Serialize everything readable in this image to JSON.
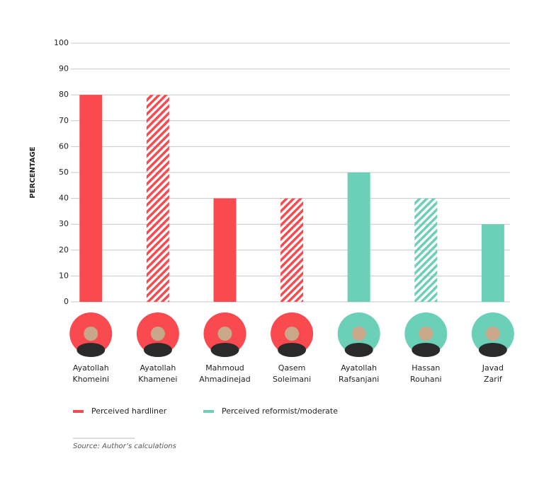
{
  "chart_data": {
    "type": "bar",
    "y_label": "PERCENTAGE",
    "categories": [
      [
        "Ayatollah",
        "Khomeini"
      ],
      [
        "Ayatollah",
        "Khamenei"
      ],
      [
        "Mahmoud",
        "Ahmadinejad"
      ],
      [
        "Qasem",
        "Soleimani"
      ],
      [
        "Ayatollah",
        "Rafsanjani"
      ],
      [
        "Hassan",
        "Rouhani"
      ],
      [
        "Javad",
        "Zarif"
      ]
    ],
    "series": [
      {
        "name": "Perceived hardliner",
        "color": "#f94a4f",
        "values": [
          80,
          80,
          40,
          40,
          null,
          null,
          null
        ]
      },
      {
        "name": "Perceived reformist/moderate",
        "color": "#6ccfb8",
        "values": [
          null,
          null,
          null,
          null,
          50,
          40,
          30
        ]
      }
    ],
    "hatched": [
      false,
      true,
      false,
      true,
      false,
      true,
      false
    ],
    "ylim": [
      0,
      100
    ],
    "yticks": [
      0,
      10,
      20,
      30,
      40,
      50,
      60,
      70,
      80,
      90,
      100
    ],
    "grid": true,
    "source": "Source: Author’s calculations"
  }
}
